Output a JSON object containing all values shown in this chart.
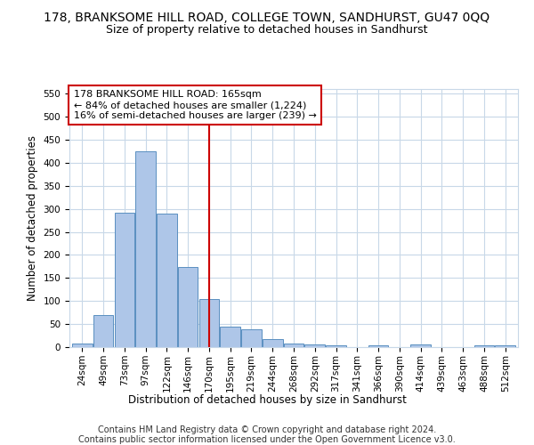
{
  "title": "178, BRANKSOME HILL ROAD, COLLEGE TOWN, SANDHURST, GU47 0QQ",
  "subtitle": "Size of property relative to detached houses in Sandhurst",
  "xlabel": "Distribution of detached houses by size in Sandhurst",
  "ylabel": "Number of detached properties",
  "categories": [
    "24sqm",
    "49sqm",
    "73sqm",
    "97sqm",
    "122sqm",
    "146sqm",
    "170sqm",
    "195sqm",
    "219sqm",
    "244sqm",
    "268sqm",
    "292sqm",
    "317sqm",
    "341sqm",
    "366sqm",
    "390sqm",
    "414sqm",
    "439sqm",
    "463sqm",
    "488sqm",
    "512sqm"
  ],
  "values": [
    8,
    70,
    292,
    425,
    290,
    173,
    105,
    44,
    38,
    17,
    8,
    5,
    3,
    0,
    3,
    0,
    5,
    0,
    0,
    4,
    3
  ],
  "bar_color": "#aec6e8",
  "bar_edge_color": "#5a8fc0",
  "vline_x": 6,
  "annotation_text": "178 BRANKSOME HILL ROAD: 165sqm\n← 84% of detached houses are smaller (1,224)\n16% of semi-detached houses are larger (239) →",
  "annotation_box_color": "#ffffff",
  "annotation_box_edge_color": "#cc0000",
  "ylim": [
    0,
    560
  ],
  "yticks": [
    0,
    50,
    100,
    150,
    200,
    250,
    300,
    350,
    400,
    450,
    500,
    550
  ],
  "footer1": "Contains HM Land Registry data © Crown copyright and database right 2024.",
  "footer2": "Contains public sector information licensed under the Open Government Licence v3.0.",
  "bg_color": "#ffffff",
  "grid_color": "#c8d8e8",
  "title_fontsize": 10,
  "subtitle_fontsize": 9,
  "label_fontsize": 8.5,
  "tick_fontsize": 7.5,
  "annotation_fontsize": 8,
  "footer_fontsize": 7
}
